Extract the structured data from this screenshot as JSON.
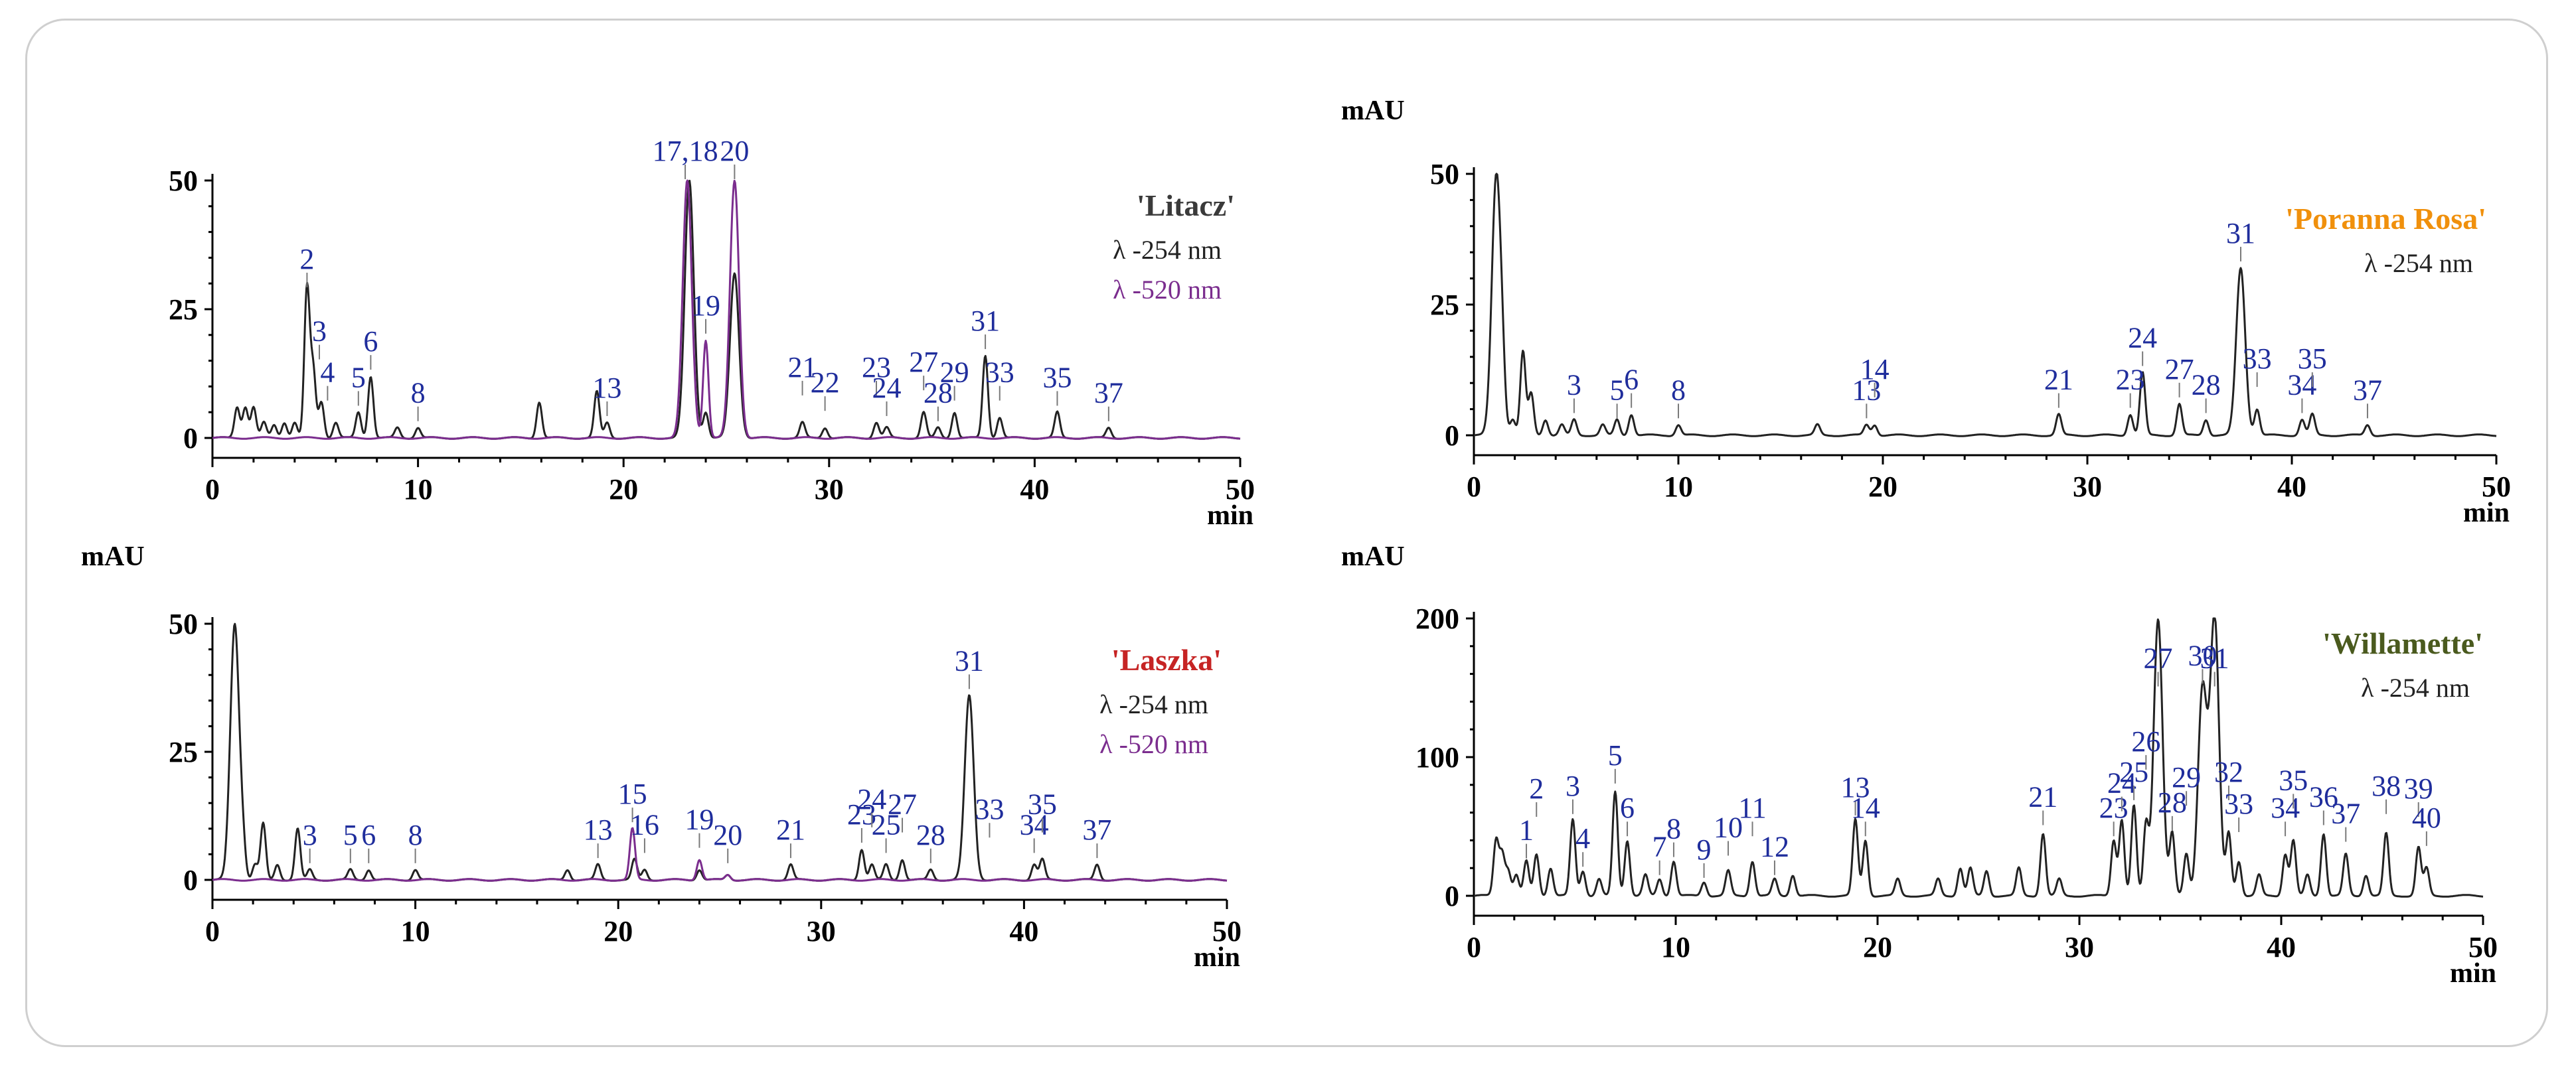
{
  "chart_data": [
    {
      "type": "line",
      "cultivar": "'Litacz'",
      "cultivar_color": "#3a3a3a",
      "xlabel": "min",
      "ylabel": "",
      "xlim": [
        0,
        50
      ],
      "ylim": [
        0,
        50
      ],
      "xticks": [
        "0",
        "10",
        "20",
        "30",
        "40",
        "50"
      ],
      "yticks": [
        "0",
        "25",
        "50"
      ],
      "grid": false,
      "legend": [
        {
          "label": "λ -254 nm",
          "color": "#222222"
        },
        {
          "label": "λ -520 nm",
          "color": "#7b2d8e"
        }
      ],
      "series": [
        {
          "name": "λ -254 nm",
          "color": "#222222",
          "peaks": [
            [
              1.2,
              6
            ],
            [
              1.6,
              6
            ],
            [
              2.0,
              6
            ],
            [
              2.5,
              3
            ],
            [
              3.0,
              2.5
            ],
            [
              3.5,
              3
            ],
            [
              4.0,
              3
            ],
            [
              4.6,
              29
            ],
            [
              4.9,
              13
            ],
            [
              5.3,
              7
            ],
            [
              6.0,
              3
            ],
            [
              7.1,
              5
            ],
            [
              7.7,
              12
            ],
            [
              9.0,
              2
            ],
            [
              10.0,
              2
            ],
            [
              15.9,
              7
            ],
            [
              18.7,
              9
            ],
            [
              19.2,
              3
            ],
            [
              23.2,
              50
            ],
            [
              24.0,
              5
            ],
            [
              25.4,
              32
            ],
            [
              28.7,
              3
            ],
            [
              29.8,
              2
            ],
            [
              32.3,
              3
            ],
            [
              32.8,
              2
            ],
            [
              34.6,
              5
            ],
            [
              35.3,
              2
            ],
            [
              36.1,
              5
            ],
            [
              37.6,
              16
            ],
            [
              38.3,
              4
            ],
            [
              41.1,
              5
            ],
            [
              43.6,
              2
            ]
          ]
        },
        {
          "name": "λ -520 nm",
          "color": "#7b2d8e",
          "peaks": [
            [
              23.1,
              50
            ],
            [
              24.0,
              19
            ],
            [
              25.4,
              50
            ]
          ]
        }
      ],
      "annotations": [
        {
          "label": "2",
          "x": 4.6,
          "y": 29
        },
        {
          "label": "3",
          "x": 5.2,
          "y": 15
        },
        {
          "label": "4",
          "x": 5.6,
          "y": 7
        },
        {
          "label": "5",
          "x": 7.1,
          "y": 6
        },
        {
          "label": "6",
          "x": 7.7,
          "y": 13
        },
        {
          "label": "8",
          "x": 10.0,
          "y": 3
        },
        {
          "label": "13",
          "x": 19.2,
          "y": 4
        },
        {
          "label": "17,18",
          "x": 23.0,
          "y": 50
        },
        {
          "label": "19",
          "x": 24.0,
          "y": 20
        },
        {
          "label": "20",
          "x": 25.4,
          "y": 50
        },
        {
          "label": "21",
          "x": 28.7,
          "y": 8
        },
        {
          "label": "22",
          "x": 29.8,
          "y": 5
        },
        {
          "label": "23",
          "x": 32.3,
          "y": 8
        },
        {
          "label": "24",
          "x": 32.8,
          "y": 4
        },
        {
          "label": "27",
          "x": 34.6,
          "y": 9
        },
        {
          "label": "28",
          "x": 35.3,
          "y": 3
        },
        {
          "label": "29",
          "x": 36.1,
          "y": 7
        },
        {
          "label": "31",
          "x": 37.6,
          "y": 17
        },
        {
          "label": "33",
          "x": 38.3,
          "y": 7
        },
        {
          "label": "35",
          "x": 41.1,
          "y": 6
        },
        {
          "label": "37",
          "x": 43.6,
          "y": 3
        }
      ]
    },
    {
      "type": "line",
      "cultivar": "'Poranna Rosa'",
      "cultivar_color": "#f0900c",
      "xlabel": "min",
      "ylabel": "mAU",
      "xlim": [
        0,
        50
      ],
      "ylim": [
        0,
        50
      ],
      "xticks": [
        "0",
        "10",
        "20",
        "30",
        "40",
        "50"
      ],
      "yticks": [
        "0",
        "25",
        "50"
      ],
      "grid": false,
      "legend": [
        {
          "label": "λ -254 nm",
          "color": "#222222"
        }
      ],
      "series": [
        {
          "name": "λ -254 nm",
          "color": "#222222",
          "peaks": [
            [
              1.1,
              50
            ],
            [
              1.4,
              6
            ],
            [
              1.9,
              3
            ],
            [
              2.4,
              16
            ],
            [
              2.8,
              8
            ],
            [
              3.5,
              3
            ],
            [
              4.3,
              2
            ],
            [
              4.9,
              3
            ],
            [
              6.3,
              2
            ],
            [
              7.0,
              3
            ],
            [
              7.7,
              4
            ],
            [
              10.0,
              2
            ],
            [
              16.8,
              2
            ],
            [
              19.2,
              2
            ],
            [
              19.6,
              2
            ],
            [
              28.6,
              4
            ],
            [
              32.1,
              4
            ],
            [
              32.7,
              12
            ],
            [
              34.5,
              6
            ],
            [
              35.8,
              3
            ],
            [
              37.5,
              32
            ],
            [
              38.3,
              5
            ],
            [
              40.5,
              3
            ],
            [
              41.0,
              4
            ],
            [
              43.7,
              2
            ]
          ]
        }
      ],
      "annotations": [
        {
          "label": "3",
          "x": 4.9,
          "y": 4
        },
        {
          "label": "5",
          "x": 7.0,
          "y": 3
        },
        {
          "label": "6",
          "x": 7.7,
          "y": 5
        },
        {
          "label": "8",
          "x": 10.0,
          "y": 3
        },
        {
          "label": "13",
          "x": 19.2,
          "y": 3
        },
        {
          "label": "14",
          "x": 19.6,
          "y": 7
        },
        {
          "label": "21",
          "x": 28.6,
          "y": 5
        },
        {
          "label": "23",
          "x": 32.1,
          "y": 5
        },
        {
          "label": "24",
          "x": 32.7,
          "y": 13
        },
        {
          "label": "27",
          "x": 34.5,
          "y": 7
        },
        {
          "label": "28",
          "x": 35.8,
          "y": 4
        },
        {
          "label": "31",
          "x": 37.5,
          "y": 33
        },
        {
          "label": "33",
          "x": 38.3,
          "y": 9
        },
        {
          "label": "34",
          "x": 40.5,
          "y": 4
        },
        {
          "label": "35",
          "x": 41.0,
          "y": 9
        },
        {
          "label": "37",
          "x": 43.7,
          "y": 3
        }
      ]
    },
    {
      "type": "line",
      "cultivar": "'Laszka'",
      "cultivar_color": "#c62424",
      "xlabel": "min",
      "ylabel": "mAU",
      "xlim": [
        0,
        50
      ],
      "ylim": [
        0,
        50
      ],
      "xticks": [
        "0",
        "10",
        "20",
        "30",
        "40",
        "50"
      ],
      "yticks": [
        "0",
        "25",
        "50"
      ],
      "grid": false,
      "legend": [
        {
          "label": "λ -254 nm",
          "color": "#222222"
        },
        {
          "label": "λ -520 nm",
          "color": "#7b2d8e"
        }
      ],
      "series": [
        {
          "name": "λ -254 nm",
          "color": "#222222",
          "peaks": [
            [
              1.1,
              50
            ],
            [
              1.5,
              5
            ],
            [
              2.1,
              3
            ],
            [
              2.5,
              11
            ],
            [
              3.2,
              3
            ],
            [
              4.2,
              10
            ],
            [
              4.8,
              2
            ],
            [
              6.8,
              2
            ],
            [
              7.7,
              2
            ],
            [
              10.0,
              2
            ],
            [
              17.5,
              2
            ],
            [
              19.0,
              3
            ],
            [
              20.8,
              4
            ],
            [
              21.3,
              2
            ],
            [
              24.0,
              2
            ],
            [
              25.4,
              1
            ],
            [
              28.5,
              3
            ],
            [
              32.0,
              6
            ],
            [
              32.5,
              3
            ],
            [
              33.2,
              3
            ],
            [
              34.0,
              4
            ],
            [
              35.4,
              2
            ],
            [
              37.3,
              36
            ],
            [
              40.5,
              3
            ],
            [
              40.9,
              4
            ],
            [
              43.6,
              3
            ]
          ]
        },
        {
          "name": "λ -520 nm",
          "color": "#7b2d8e",
          "peaks": [
            [
              20.7,
              10
            ],
            [
              24.0,
              4
            ],
            [
              25.4,
              1
            ]
          ]
        }
      ],
      "annotations": [
        {
          "label": "3",
          "x": 4.8,
          "y": 3
        },
        {
          "label": "5",
          "x": 6.8,
          "y": 3
        },
        {
          "label": "6",
          "x": 7.7,
          "y": 3
        },
        {
          "label": "8",
          "x": 10.0,
          "y": 3
        },
        {
          "label": "13",
          "x": 19.0,
          "y": 4
        },
        {
          "label": "15",
          "x": 20.7,
          "y": 11
        },
        {
          "label": "16",
          "x": 21.3,
          "y": 5
        },
        {
          "label": "19",
          "x": 24.0,
          "y": 6
        },
        {
          "label": "20",
          "x": 25.4,
          "y": 3
        },
        {
          "label": "21",
          "x": 28.5,
          "y": 4
        },
        {
          "label": "23",
          "x": 32.0,
          "y": 7
        },
        {
          "label": "24",
          "x": 32.5,
          "y": 10
        },
        {
          "label": "25",
          "x": 33.2,
          "y": 5
        },
        {
          "label": "27",
          "x": 34.0,
          "y": 9
        },
        {
          "label": "28",
          "x": 35.4,
          "y": 3
        },
        {
          "label": "31",
          "x": 37.3,
          "y": 37
        },
        {
          "label": "33",
          "x": 38.3,
          "y": 8
        },
        {
          "label": "34",
          "x": 40.5,
          "y": 5
        },
        {
          "label": "35",
          "x": 40.9,
          "y": 9
        },
        {
          "label": "37",
          "x": 43.6,
          "y": 4
        }
      ]
    },
    {
      "type": "line",
      "cultivar": "'Willamette'",
      "cultivar_color": "#4a5a1e",
      "xlabel": "min",
      "ylabel": "mAU",
      "xlim": [
        0,
        50
      ],
      "ylim": [
        0,
        200
      ],
      "xticks": [
        "0",
        "10",
        "20",
        "30",
        "40",
        "50"
      ],
      "yticks": [
        "0",
        "100",
        "200"
      ],
      "grid": false,
      "legend": [
        {
          "label": "λ -254 nm",
          "color": "#222222"
        }
      ],
      "series": [
        {
          "name": "λ -254 nm",
          "color": "#222222",
          "peaks": [
            [
              1.1,
              40
            ],
            [
              1.4,
              30
            ],
            [
              1.7,
              18
            ],
            [
              2.1,
              15
            ],
            [
              2.6,
              25
            ],
            [
              3.1,
              30
            ],
            [
              3.8,
              20
            ],
            [
              4.9,
              55
            ],
            [
              5.4,
              18
            ],
            [
              6.2,
              12
            ],
            [
              7.0,
              75
            ],
            [
              7.6,
              40
            ],
            [
              8.5,
              15
            ],
            [
              9.2,
              12
            ],
            [
              9.9,
              25
            ],
            [
              11.4,
              10
            ],
            [
              12.6,
              18
            ],
            [
              13.8,
              25
            ],
            [
              14.9,
              12
            ],
            [
              15.8,
              15
            ],
            [
              18.9,
              55
            ],
            [
              19.4,
              40
            ],
            [
              21.0,
              12
            ],
            [
              23.0,
              12
            ],
            [
              24.1,
              20
            ],
            [
              24.6,
              20
            ],
            [
              25.4,
              18
            ],
            [
              27.0,
              20
            ],
            [
              28.2,
              45
            ],
            [
              29.0,
              12
            ],
            [
              31.7,
              40
            ],
            [
              32.1,
              55
            ],
            [
              32.7,
              65
            ],
            [
              33.3,
              50
            ],
            [
              33.9,
              200
            ],
            [
              34.6,
              45
            ],
            [
              35.3,
              30
            ],
            [
              36.1,
              150
            ],
            [
              36.7,
              200
            ],
            [
              37.4,
              45
            ],
            [
              37.9,
              25
            ],
            [
              38.9,
              15
            ],
            [
              40.2,
              30
            ],
            [
              40.6,
              40
            ],
            [
              41.3,
              15
            ],
            [
              42.1,
              45
            ],
            [
              43.2,
              30
            ],
            [
              44.2,
              15
            ],
            [
              45.2,
              45
            ],
            [
              46.8,
              35
            ],
            [
              47.2,
              20
            ]
          ]
        }
      ],
      "annotations": [
        {
          "label": "1",
          "x": 2.6,
          "y": 26
        },
        {
          "label": "2",
          "x": 3.1,
          "y": 56
        },
        {
          "label": "3",
          "x": 4.9,
          "y": 58
        },
        {
          "label": "4",
          "x": 5.4,
          "y": 20
        },
        {
          "label": "5",
          "x": 7.0,
          "y": 80
        },
        {
          "label": "6",
          "x": 7.6,
          "y": 42
        },
        {
          "label": "7",
          "x": 9.2,
          "y": 14
        },
        {
          "label": "8",
          "x": 9.9,
          "y": 27
        },
        {
          "label": "9",
          "x": 11.4,
          "y": 12
        },
        {
          "label": "10",
          "x": 12.6,
          "y": 28
        },
        {
          "label": "11",
          "x": 13.8,
          "y": 42
        },
        {
          "label": "12",
          "x": 14.9,
          "y": 14
        },
        {
          "label": "13",
          "x": 18.9,
          "y": 57
        },
        {
          "label": "14",
          "x": 19.4,
          "y": 42
        },
        {
          "label": "21",
          "x": 28.2,
          "y": 50
        },
        {
          "label": "23",
          "x": 31.7,
          "y": 42
        },
        {
          "label": "24",
          "x": 32.1,
          "y": 60
        },
        {
          "label": "25",
          "x": 32.7,
          "y": 68
        },
        {
          "label": "26",
          "x": 33.3,
          "y": 90
        },
        {
          "label": "27",
          "x": 33.9,
          "y": 150
        },
        {
          "label": "28",
          "x": 34.6,
          "y": 46
        },
        {
          "label": "29",
          "x": 35.3,
          "y": 64
        },
        {
          "label": "30",
          "x": 36.1,
          "y": 152
        },
        {
          "label": "31",
          "x": 36.7,
          "y": 150
        },
        {
          "label": "32",
          "x": 37.4,
          "y": 68
        },
        {
          "label": "33",
          "x": 37.9,
          "y": 45
        },
        {
          "label": "34",
          "x": 40.2,
          "y": 42
        },
        {
          "label": "35",
          "x": 40.6,
          "y": 62
        },
        {
          "label": "36",
          "x": 42.1,
          "y": 50
        },
        {
          "label": "37",
          "x": 43.2,
          "y": 38
        },
        {
          "label": "38",
          "x": 45.2,
          "y": 58
        },
        {
          "label": "39",
          "x": 46.8,
          "y": 56
        },
        {
          "label": "40",
          "x": 47.2,
          "y": 35
        }
      ]
    }
  ]
}
